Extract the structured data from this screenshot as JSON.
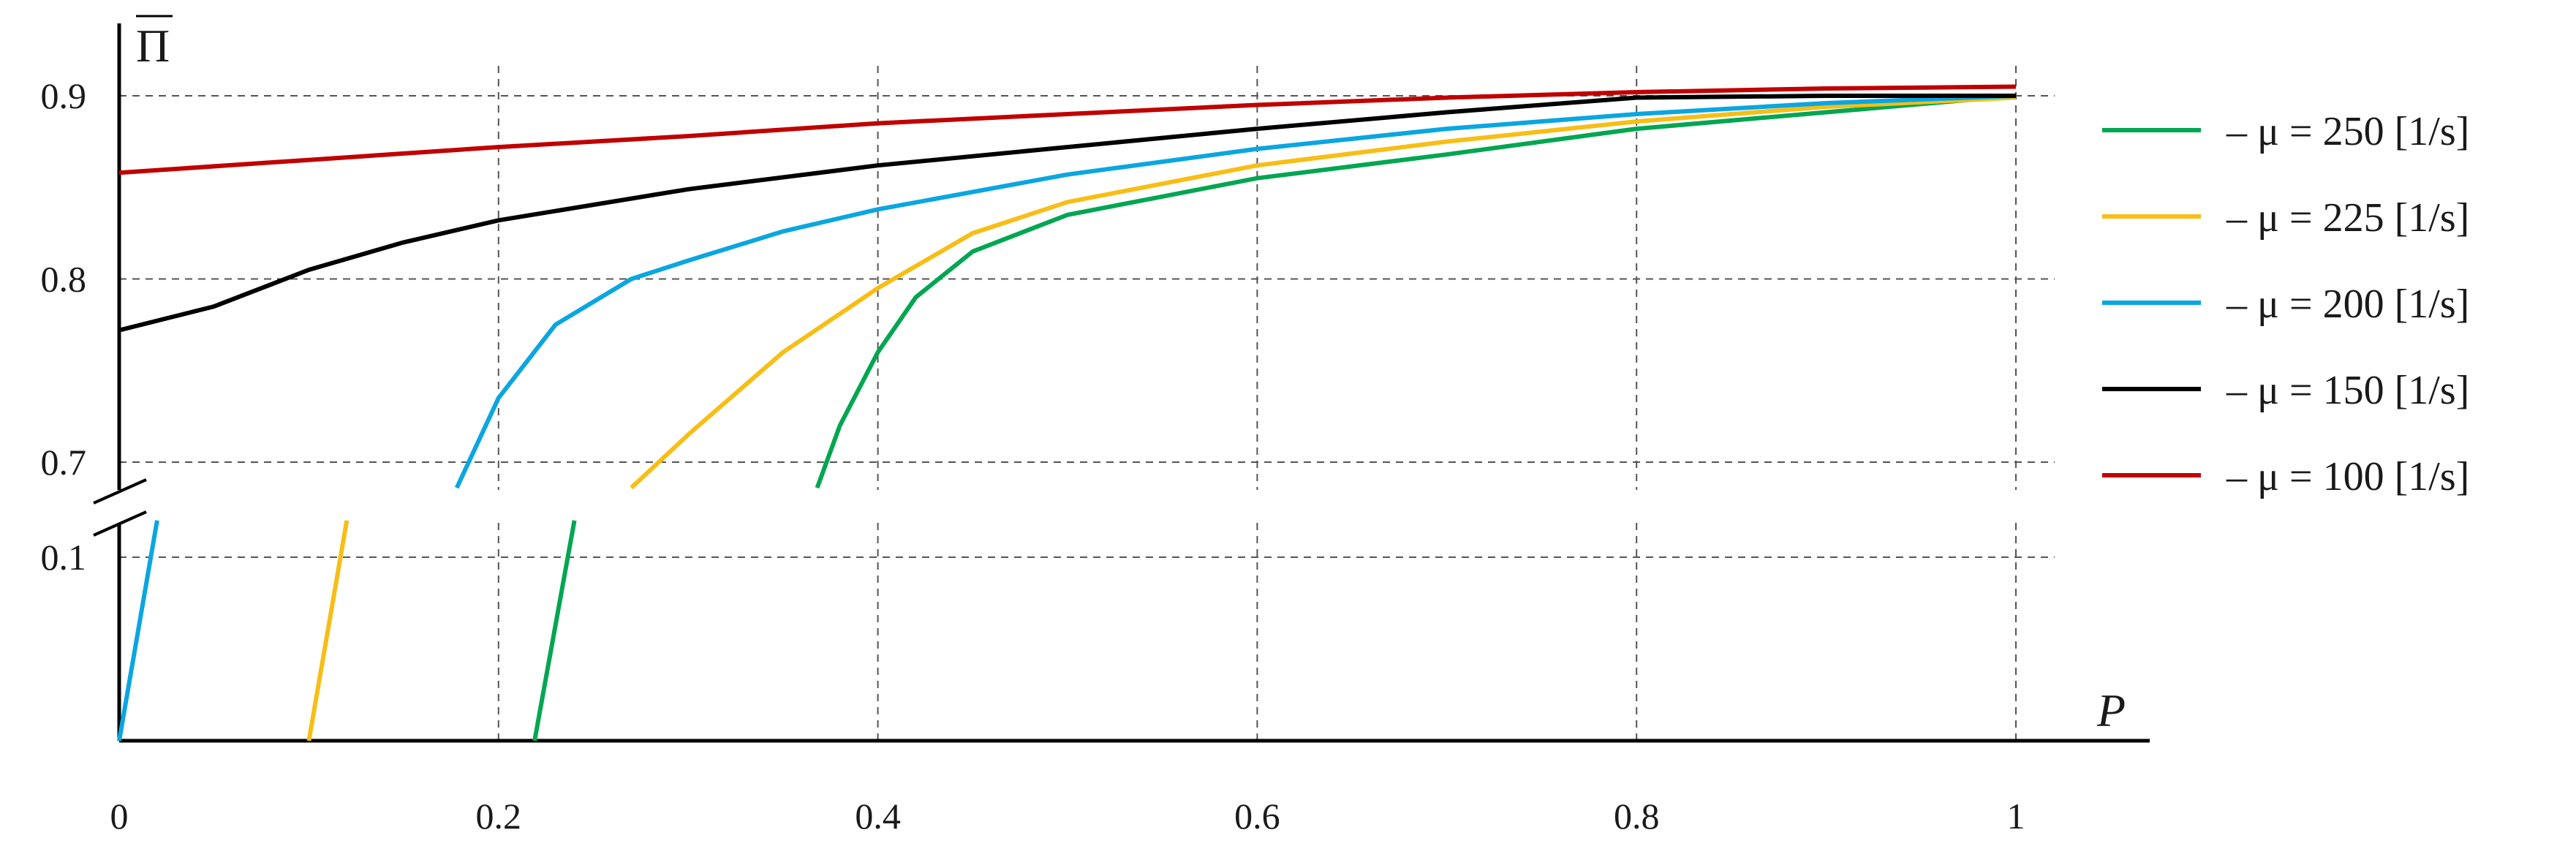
{
  "chart_data": {
    "type": "line",
    "xlabel": "P",
    "ylabel": "Π",
    "xlim": [
      0,
      1
    ],
    "x_ticks": [
      "0",
      "0.2",
      "0.4",
      "0.6",
      "0.8",
      "1"
    ],
    "y_ticks_lower": [
      "0.1"
    ],
    "y_ticks_upper": [
      "0.7",
      "0.8",
      "0.9"
    ],
    "axis_break": "between 0.1 and 0.7",
    "upper_ylim": [
      0.685,
      0.94
    ],
    "lower_ylim": [
      0,
      0.12
    ],
    "grid": true,
    "legend_position": "right",
    "series": [
      {
        "name": "μ = 250 [1/s]",
        "legend_label": "–   μ = 250 [1/s]",
        "color": "#00a651",
        "lower_segment": [
          [
            0.219,
            0
          ],
          [
            0.24,
            0.12
          ]
        ],
        "upper_segment": [
          [
            0.368,
            0.686
          ],
          [
            0.38,
            0.72
          ],
          [
            0.4,
            0.76
          ],
          [
            0.42,
            0.79
          ],
          [
            0.45,
            0.815
          ],
          [
            0.5,
            0.835
          ],
          [
            0.55,
            0.845
          ],
          [
            0.6,
            0.855
          ],
          [
            0.7,
            0.868
          ],
          [
            0.8,
            0.882
          ],
          [
            0.9,
            0.891
          ],
          [
            1.0,
            0.9
          ]
        ]
      },
      {
        "name": "μ = 225 [1/s]",
        "legend_label": "–   μ = 225 [1/s]",
        "color": "#f7be16",
        "lower_segment": [
          [
            0.1,
            0
          ],
          [
            0.12,
            0.12
          ]
        ],
        "upper_segment": [
          [
            0.27,
            0.686
          ],
          [
            0.3,
            0.715
          ],
          [
            0.35,
            0.76
          ],
          [
            0.4,
            0.795
          ],
          [
            0.45,
            0.825
          ],
          [
            0.5,
            0.842
          ],
          [
            0.6,
            0.862
          ],
          [
            0.7,
            0.875
          ],
          [
            0.8,
            0.886
          ],
          [
            0.9,
            0.894
          ],
          [
            1.0,
            0.899
          ]
        ]
      },
      {
        "name": "μ = 200 [1/s]",
        "legend_label": "–   μ = 200 [1/s]",
        "color": "#0aa6e0",
        "lower_segment": [
          [
            0.0,
            0
          ],
          [
            0.02,
            0.12
          ]
        ],
        "upper_segment": [
          [
            0.178,
            0.686
          ],
          [
            0.2,
            0.735
          ],
          [
            0.23,
            0.775
          ],
          [
            0.27,
            0.8
          ],
          [
            0.3,
            0.81
          ],
          [
            0.35,
            0.826
          ],
          [
            0.4,
            0.838
          ],
          [
            0.5,
            0.857
          ],
          [
            0.6,
            0.871
          ],
          [
            0.7,
            0.882
          ],
          [
            0.8,
            0.89
          ],
          [
            0.9,
            0.896
          ],
          [
            1.0,
            0.9
          ]
        ]
      },
      {
        "name": "μ = 150 [1/s]",
        "legend_label": "–   μ = 150 [1/s]",
        "color": "#000000",
        "upper_segment": [
          [
            0.0,
            0.772
          ],
          [
            0.05,
            0.785
          ],
          [
            0.1,
            0.805
          ],
          [
            0.15,
            0.82
          ],
          [
            0.2,
            0.832
          ],
          [
            0.3,
            0.849
          ],
          [
            0.4,
            0.862
          ],
          [
            0.5,
            0.872
          ],
          [
            0.6,
            0.882
          ],
          [
            0.7,
            0.891
          ],
          [
            0.8,
            0.899
          ],
          [
            0.9,
            0.9
          ],
          [
            1.0,
            0.9
          ]
        ]
      },
      {
        "name": "μ = 100 [1/s]",
        "legend_label": "–   μ = 100 [1/s]",
        "color": "#c00000",
        "upper_segment": [
          [
            0.0,
            0.858
          ],
          [
            0.1,
            0.865
          ],
          [
            0.2,
            0.872
          ],
          [
            0.3,
            0.878
          ],
          [
            0.4,
            0.885
          ],
          [
            0.5,
            0.89
          ],
          [
            0.6,
            0.895
          ],
          [
            0.7,
            0.899
          ],
          [
            0.8,
            0.902
          ],
          [
            0.9,
            0.904
          ],
          [
            1.0,
            0.905
          ]
        ]
      }
    ]
  }
}
